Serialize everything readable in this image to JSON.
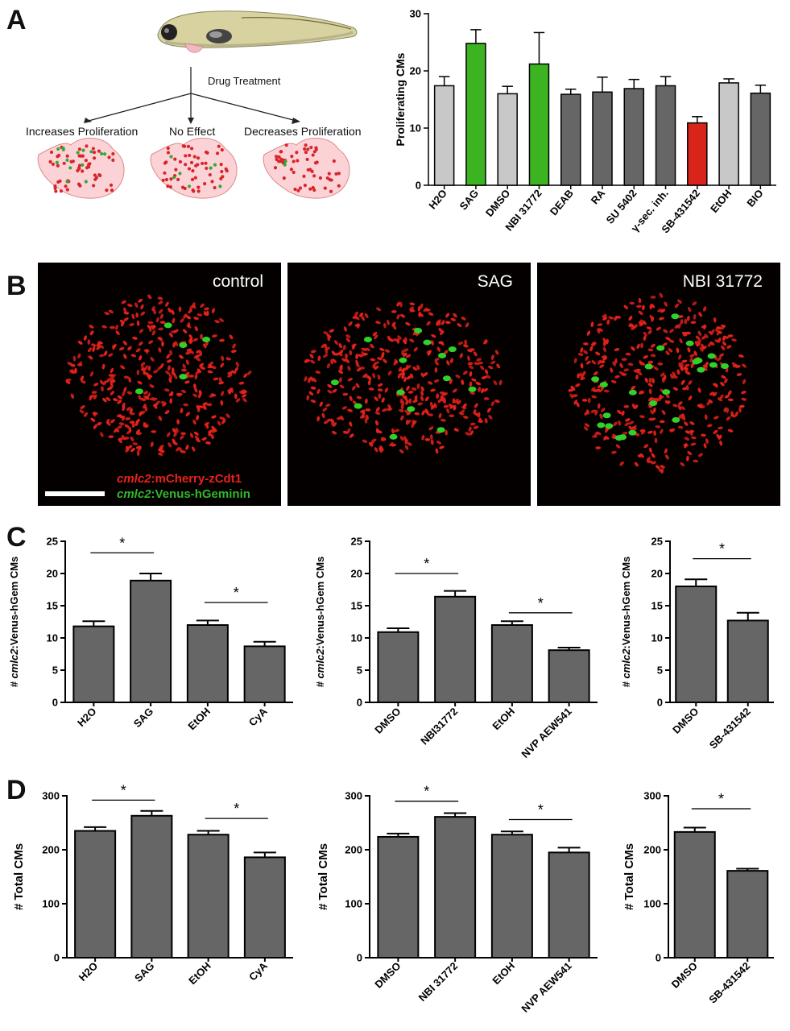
{
  "panels": {
    "A": "A",
    "B": "B",
    "C": "C",
    "D": "D"
  },
  "diagram": {
    "drug_treatment": "Drug Treatment",
    "outcomes": [
      "Increases Proliferation",
      "No Effect",
      "Decreases Proliferation"
    ]
  },
  "micrographs": {
    "titles": [
      "control",
      "SAG",
      "NBI 31772"
    ],
    "legend": {
      "red_gene": "cmlc2",
      "red_rest": ":mCherry-zCdt1",
      "green_gene": "cmlc2",
      "green_rest": ":Venus-hGeminin"
    },
    "colors": {
      "red": "#e8221b",
      "green": "#2fd12a"
    }
  },
  "colors": {
    "light_gray": "#c8c8c8",
    "dark_gray": "#666666",
    "green": "#3cb422",
    "red": "#d9241c"
  },
  "chart_data": [
    {
      "id": "A",
      "type": "bar",
      "ylabel": "Proliferating CMs",
      "ylim": [
        0,
        30
      ],
      "yticks": [
        0,
        10,
        20,
        30
      ],
      "categories": [
        "H2O",
        "SAG",
        "DMSO",
        "NBI 31772",
        "DEAB",
        "RA",
        "SU 5402",
        "γ-sec. inh.",
        "SB-431542",
        "EtOH",
        "BIO"
      ],
      "values": [
        17.4,
        24.8,
        16.0,
        21.2,
        15.9,
        16.3,
        16.9,
        17.4,
        10.9,
        17.9,
        16.1
      ],
      "errors": [
        1.6,
        2.4,
        1.3,
        5.5,
        0.9,
        2.6,
        1.6,
        1.6,
        1.1,
        0.7,
        1.4
      ],
      "bar_colors": [
        "light_gray",
        "green",
        "light_gray",
        "green",
        "dark_gray",
        "dark_gray",
        "dark_gray",
        "dark_gray",
        "red",
        "light_gray",
        "dark_gray"
      ],
      "significance": []
    },
    {
      "id": "C1",
      "type": "bar",
      "ylabel_prefix": "# ",
      "ylabel_gene": "cmlc2",
      "ylabel_rest": ":Venus-hGem CMs",
      "ylim": [
        0,
        25
      ],
      "yticks": [
        0,
        5,
        10,
        15,
        20,
        25
      ],
      "categories": [
        "H2O",
        "SAG",
        "EtOH",
        "CyA"
      ],
      "values": [
        11.8,
        18.9,
        12.0,
        8.7
      ],
      "errors": [
        0.8,
        1.1,
        0.7,
        0.7
      ],
      "significance": [
        {
          "pair": [
            0,
            1
          ],
          "y": 23.2,
          "label": "*"
        },
        {
          "pair": [
            2,
            3
          ],
          "y": 15.5,
          "label": "*"
        }
      ]
    },
    {
      "id": "C2",
      "type": "bar",
      "ylabel_prefix": "# ",
      "ylabel_gene": "cmlc2",
      "ylabel_rest": ":Venus-hGem CMs",
      "ylim": [
        0,
        25
      ],
      "yticks": [
        0,
        5,
        10,
        15,
        20,
        25
      ],
      "categories": [
        "DMSO",
        "NBI31772",
        "EtOH",
        "NVP AEW541"
      ],
      "values": [
        10.9,
        16.4,
        12.0,
        8.1
      ],
      "errors": [
        0.6,
        0.9,
        0.6,
        0.4
      ],
      "significance": [
        {
          "pair": [
            0,
            1
          ],
          "y": 20.0,
          "label": "*"
        },
        {
          "pair": [
            2,
            3
          ],
          "y": 13.9,
          "label": "*"
        }
      ]
    },
    {
      "id": "C3",
      "type": "bar",
      "ylabel_prefix": "# ",
      "ylabel_gene": "cmlc2",
      "ylabel_rest": ":Venus-hGem CMs",
      "ylim": [
        0,
        25
      ],
      "yticks": [
        0,
        5,
        10,
        15,
        20,
        25
      ],
      "categories": [
        "DMSO",
        "SB-431542"
      ],
      "values": [
        18.0,
        12.7
      ],
      "errors": [
        1.1,
        1.2
      ],
      "significance": [
        {
          "pair": [
            0,
            1
          ],
          "y": 22.3,
          "label": "*"
        }
      ]
    },
    {
      "id": "D1",
      "type": "bar",
      "ylabel": "# Total CMs",
      "ylim": [
        0,
        300
      ],
      "yticks": [
        0,
        100,
        200,
        300
      ],
      "categories": [
        "H2O",
        "SAG",
        "EtOH",
        "CyA"
      ],
      "values": [
        235,
        263,
        228,
        186
      ],
      "errors": [
        7,
        9,
        7,
        9
      ],
      "significance": [
        {
          "pair": [
            0,
            1
          ],
          "y": 292,
          "label": "*"
        },
        {
          "pair": [
            2,
            3
          ],
          "y": 258,
          "label": "*"
        }
      ]
    },
    {
      "id": "D2",
      "type": "bar",
      "ylabel": "# Total CMs",
      "ylim": [
        0,
        300
      ],
      "yticks": [
        0,
        100,
        200,
        300
      ],
      "categories": [
        "DMSO",
        "NBI 31772",
        "EtOH",
        "NVP AEW541"
      ],
      "values": [
        224,
        261,
        228,
        195
      ],
      "errors": [
        6,
        7,
        6,
        9
      ],
      "significance": [
        {
          "pair": [
            0,
            1
          ],
          "y": 290,
          "label": "*"
        },
        {
          "pair": [
            2,
            3
          ],
          "y": 256,
          "label": "*"
        }
      ]
    },
    {
      "id": "D3",
      "type": "bar",
      "ylabel": "# Total CMs",
      "ylim": [
        0,
        300
      ],
      "yticks": [
        0,
        100,
        200,
        300
      ],
      "categories": [
        "DMSO",
        "SB-431542"
      ],
      "values": [
        233,
        161
      ],
      "errors": [
        8,
        4
      ],
      "significance": [
        {
          "pair": [
            0,
            1
          ],
          "y": 276,
          "label": "*"
        }
      ]
    }
  ]
}
